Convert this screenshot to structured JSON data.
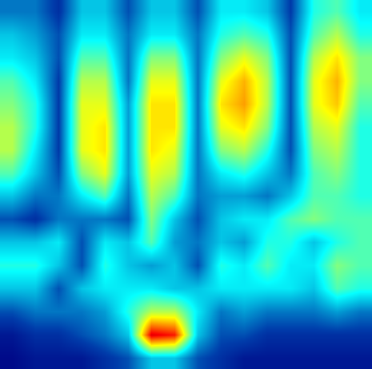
{
  "chart_data": {
    "type": "heatmap",
    "color": "Jet",
    "tick_labels": false,
    "zlim": [
      0,
      1
    ],
    "cells": [
      [
        0.2,
        0.2,
        0.1,
        0.3,
        0.3,
        0.15,
        0.3,
        0.3,
        0.15,
        0.35,
        0.35,
        0.3,
        0.12,
        0.4,
        0.45,
        0.35
      ],
      [
        0.3,
        0.25,
        0.15,
        0.35,
        0.35,
        0.2,
        0.35,
        0.35,
        0.2,
        0.4,
        0.45,
        0.4,
        0.15,
        0.45,
        0.55,
        0.4
      ],
      [
        0.35,
        0.3,
        0.15,
        0.45,
        0.45,
        0.2,
        0.5,
        0.5,
        0.2,
        0.5,
        0.6,
        0.5,
        0.15,
        0.55,
        0.65,
        0.5
      ],
      [
        0.45,
        0.35,
        0.12,
        0.55,
        0.55,
        0.2,
        0.6,
        0.6,
        0.2,
        0.6,
        0.7,
        0.55,
        0.15,
        0.6,
        0.7,
        0.5
      ],
      [
        0.5,
        0.4,
        0.12,
        0.6,
        0.6,
        0.25,
        0.65,
        0.65,
        0.2,
        0.65,
        0.72,
        0.55,
        0.15,
        0.6,
        0.68,
        0.45
      ],
      [
        0.55,
        0.4,
        0.12,
        0.6,
        0.65,
        0.25,
        0.65,
        0.65,
        0.2,
        0.6,
        0.65,
        0.5,
        0.15,
        0.55,
        0.6,
        0.4
      ],
      [
        0.55,
        0.35,
        0.12,
        0.6,
        0.65,
        0.25,
        0.65,
        0.6,
        0.2,
        0.5,
        0.55,
        0.4,
        0.15,
        0.5,
        0.55,
        0.4
      ],
      [
        0.45,
        0.3,
        0.15,
        0.5,
        0.6,
        0.25,
        0.6,
        0.55,
        0.2,
        0.35,
        0.4,
        0.3,
        0.2,
        0.45,
        0.5,
        0.4
      ],
      [
        0.3,
        0.2,
        0.2,
        0.35,
        0.45,
        0.2,
        0.55,
        0.45,
        0.2,
        0.25,
        0.25,
        0.2,
        0.3,
        0.45,
        0.45,
        0.4
      ],
      [
        0.15,
        0.1,
        0.2,
        0.2,
        0.2,
        0.15,
        0.5,
        0.3,
        0.15,
        0.3,
        0.35,
        0.35,
        0.45,
        0.5,
        0.45,
        0.45
      ],
      [
        0.3,
        0.3,
        0.35,
        0.15,
        0.35,
        0.3,
        0.45,
        0.25,
        0.2,
        0.3,
        0.25,
        0.4,
        0.4,
        0.3,
        0.4,
        0.45
      ],
      [
        0.4,
        0.4,
        0.3,
        0.15,
        0.4,
        0.3,
        0.25,
        0.3,
        0.15,
        0.4,
        0.35,
        0.45,
        0.35,
        0.35,
        0.5,
        0.45
      ],
      [
        0.3,
        0.3,
        0.15,
        0.3,
        0.35,
        0.35,
        0.35,
        0.3,
        0.3,
        0.35,
        0.35,
        0.35,
        0.35,
        0.3,
        0.45,
        0.4
      ],
      [
        0.15,
        0.2,
        0.2,
        0.2,
        0.25,
        0.4,
        0.55,
        0.55,
        0.35,
        0.2,
        0.25,
        0.2,
        0.2,
        0.2,
        0.25,
        0.2
      ],
      [
        0.05,
        0.1,
        0.1,
        0.15,
        0.2,
        0.3,
        0.9,
        0.85,
        0.3,
        0.15,
        0.15,
        0.1,
        0.1,
        0.1,
        0.1,
        0.1
      ],
      [
        0.02,
        0.05,
        0.05,
        0.05,
        0.1,
        0.15,
        0.3,
        0.3,
        0.15,
        0.1,
        0.05,
        0.05,
        0.05,
        0.05,
        0.05,
        0.05
      ]
    ]
  }
}
